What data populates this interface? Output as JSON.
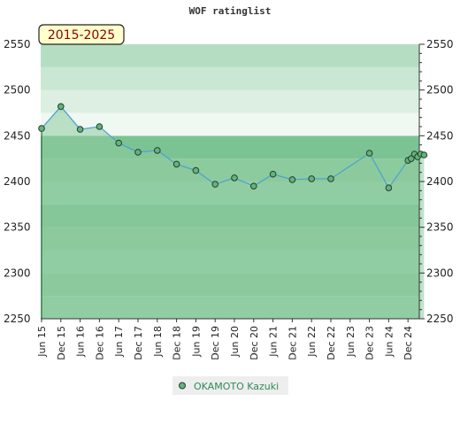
{
  "chart_data": {
    "type": "area",
    "title": "WOF ratinglist",
    "period_badge": "2015-2025",
    "ylim": [
      2250,
      2550
    ],
    "y_ticks": [
      2250,
      2300,
      2350,
      2400,
      2450,
      2500,
      2550
    ],
    "x_tick_labels": [
      "Jun 15",
      "Dec 15",
      "Jun 16",
      "Dec 16",
      "Jun 17",
      "Dec 17",
      "Jun 18",
      "Dec 18",
      "Jun 19",
      "Dec 19",
      "Jun 20",
      "Dec 20",
      "Jun 21",
      "Dec 21",
      "Jun 22",
      "Dec 22",
      "Jun 23",
      "Dec 23",
      "Jun 24",
      "Dec 24"
    ],
    "series": [
      {
        "name": "OKAMOTO Kazuki",
        "color": "#4fa3cf",
        "marker_color": "#5fb57a",
        "fill_color": "#8ccb9e",
        "points": [
          {
            "x": "2015-06",
            "y": 2458
          },
          {
            "x": "2015-12",
            "y": 2482
          },
          {
            "x": "2016-06",
            "y": 2457
          },
          {
            "x": "2016-12",
            "y": 2460
          },
          {
            "x": "2017-06",
            "y": 2442
          },
          {
            "x": "2017-12",
            "y": 2432
          },
          {
            "x": "2018-06",
            "y": 2434
          },
          {
            "x": "2018-12",
            "y": 2419
          },
          {
            "x": "2019-06",
            "y": 2412
          },
          {
            "x": "2019-12",
            "y": 2397
          },
          {
            "x": "2020-06",
            "y": 2404
          },
          {
            "x": "2020-12",
            "y": 2395
          },
          {
            "x": "2021-06",
            "y": 2408
          },
          {
            "x": "2021-12",
            "y": 2402
          },
          {
            "x": "2022-06",
            "y": 2403
          },
          {
            "x": "2022-12",
            "y": 2403
          },
          {
            "x": "2023-12",
            "y": 2431
          },
          {
            "x": "2024-06",
            "y": 2393
          },
          {
            "x": "2024-12",
            "y": 2423
          },
          {
            "x": "2025-01",
            "y": 2425
          },
          {
            "x": "2025-02",
            "y": 2430
          },
          {
            "x": "2025-03",
            "y": 2427
          },
          {
            "x": "2025-04",
            "y": 2430
          },
          {
            "x": "2025-05",
            "y": 2429
          }
        ]
      }
    ],
    "bands": [
      {
        "from": 2250,
        "to": 2275,
        "color": "#98d1a8"
      },
      {
        "from": 2275,
        "to": 2300,
        "color": "#8ccb9e"
      },
      {
        "from": 2300,
        "to": 2325,
        "color": "#98d1a8"
      },
      {
        "from": 2325,
        "to": 2350,
        "color": "#8ccb9e"
      },
      {
        "from": 2350,
        "to": 2375,
        "color": "#7cc393"
      },
      {
        "from": 2375,
        "to": 2400,
        "color": "#98d1a8"
      },
      {
        "from": 2400,
        "to": 2425,
        "color": "#8ccb9e"
      },
      {
        "from": 2425,
        "to": 2450,
        "color": "#7cc393"
      },
      {
        "from": 2450,
        "to": 2475,
        "color": "#f0f8f2"
      },
      {
        "from": 2475,
        "to": 2500,
        "color": "#dcefe2"
      },
      {
        "from": 2500,
        "to": 2525,
        "color": "#c9e7d3"
      },
      {
        "from": 2525,
        "to": 2550,
        "color": "#b5ddc2"
      }
    ],
    "grid": false,
    "legend_position": "bottom-center"
  }
}
